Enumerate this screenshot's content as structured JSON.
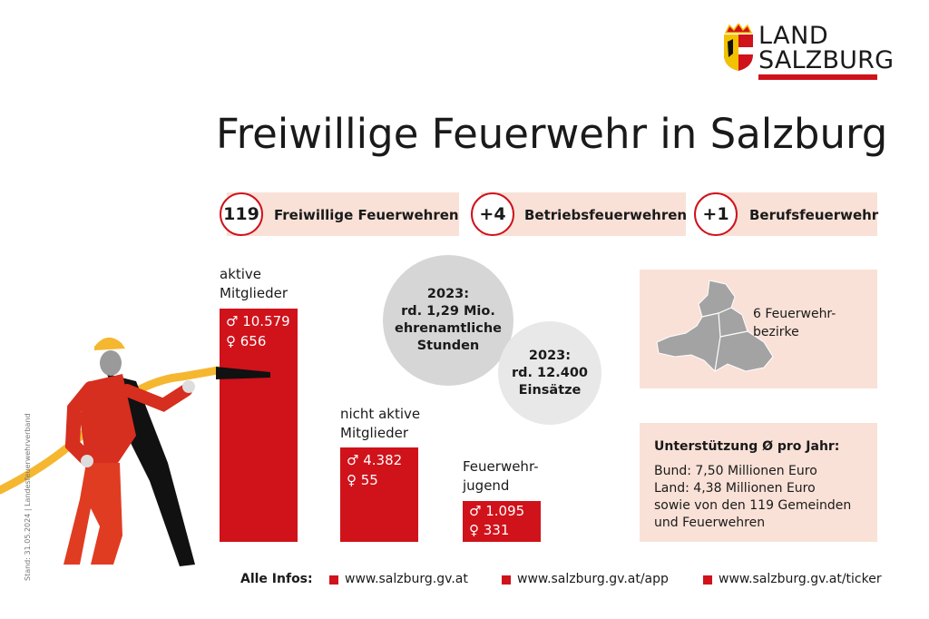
{
  "logo": {
    "line1": "LAND",
    "line2": "SALZBURG"
  },
  "title": "Freiwillige Feuerwehr in Salzburg",
  "badges": [
    {
      "number": "119",
      "label": "Freiwillige Feuerwehren"
    },
    {
      "number": "+4",
      "label": "Betriebsfeuerwehren"
    },
    {
      "number": "+1",
      "label": "Berufsfeuerwehr"
    }
  ],
  "groups": [
    {
      "label": "aktive\nMitglieder",
      "male": "♂ 10.579",
      "female": "♀ 656"
    },
    {
      "label": "nicht aktive\nMitglieder",
      "male": "♂ 4.382",
      "female": "♀ 55"
    },
    {
      "label": "Feuerwehr-\njugend",
      "male": "♂ 1.095",
      "female": "♀ 331"
    }
  ],
  "circles": [
    {
      "text": "2023:\nrd. 1,29 Mio.\nehrenamtliche\nStunden"
    },
    {
      "text": "2023:\nrd. 12.400\nEinsätze"
    }
  ],
  "districts": "6 Feuerwehr-\nbezirke",
  "support": {
    "heading": "Unterstützung Ø pro Jahr:",
    "lines": [
      "Bund: 7,50 Millionen Euro",
      "Land: 4,38 Millionen Euro",
      "sowie von den 119 Gemeinden",
      "und Feuerwehren"
    ]
  },
  "footer": {
    "label": "Alle Infos:",
    "links": [
      "www.salzburg.gv.at",
      "www.salzburg.gv.at/app",
      "www.salzburg.gv.at/ticker"
    ]
  },
  "source": "Stand: 31.05.2024 | Landesfeuerwehrverband"
}
